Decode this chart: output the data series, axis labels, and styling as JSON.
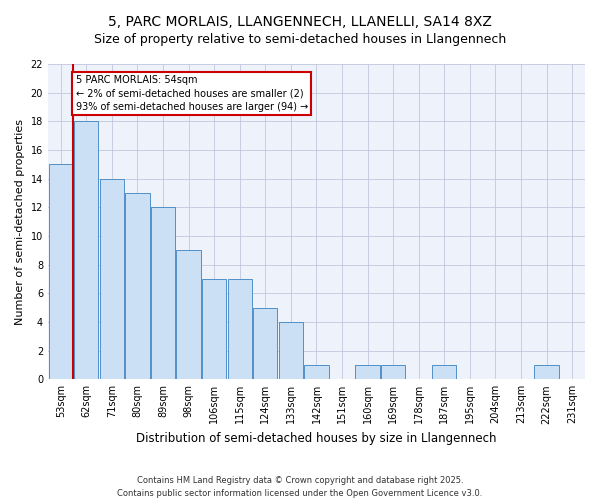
{
  "title": "5, PARC MORLAIS, LLANGENNECH, LLANELLI, SA14 8XZ",
  "subtitle": "Size of property relative to semi-detached houses in Llangennech",
  "xlabel": "Distribution of semi-detached houses by size in Llangennech",
  "ylabel": "Number of semi-detached properties",
  "categories": [
    "53sqm",
    "62sqm",
    "71sqm",
    "80sqm",
    "89sqm",
    "98sqm",
    "106sqm",
    "115sqm",
    "124sqm",
    "133sqm",
    "142sqm",
    "151sqm",
    "160sqm",
    "169sqm",
    "178sqm",
    "187sqm",
    "195sqm",
    "204sqm",
    "213sqm",
    "222sqm",
    "231sqm"
  ],
  "values": [
    15,
    18,
    14,
    13,
    12,
    9,
    7,
    7,
    5,
    4,
    1,
    0,
    1,
    1,
    0,
    1,
    0,
    0,
    0,
    1,
    0
  ],
  "bar_color": "#cce0f5",
  "bar_edge_color": "#5090c8",
  "vline_color": "#cc0000",
  "annotation_text": "5 PARC MORLAIS: 54sqm\n← 2% of semi-detached houses are smaller (2)\n93% of semi-detached houses are larger (94) →",
  "annotation_edge_color": "#cc0000",
  "ylim": [
    0,
    22
  ],
  "yticks": [
    0,
    2,
    4,
    6,
    8,
    10,
    12,
    14,
    16,
    18,
    20,
    22
  ],
  "background_color": "#eef2fb",
  "grid_color": "#c0c8dc",
  "footer_text": "Contains HM Land Registry data © Crown copyright and database right 2025.\nContains public sector information licensed under the Open Government Licence v3.0.",
  "title_fontsize": 10,
  "subtitle_fontsize": 9,
  "tick_fontsize": 7,
  "ylabel_fontsize": 8,
  "xlabel_fontsize": 8.5
}
